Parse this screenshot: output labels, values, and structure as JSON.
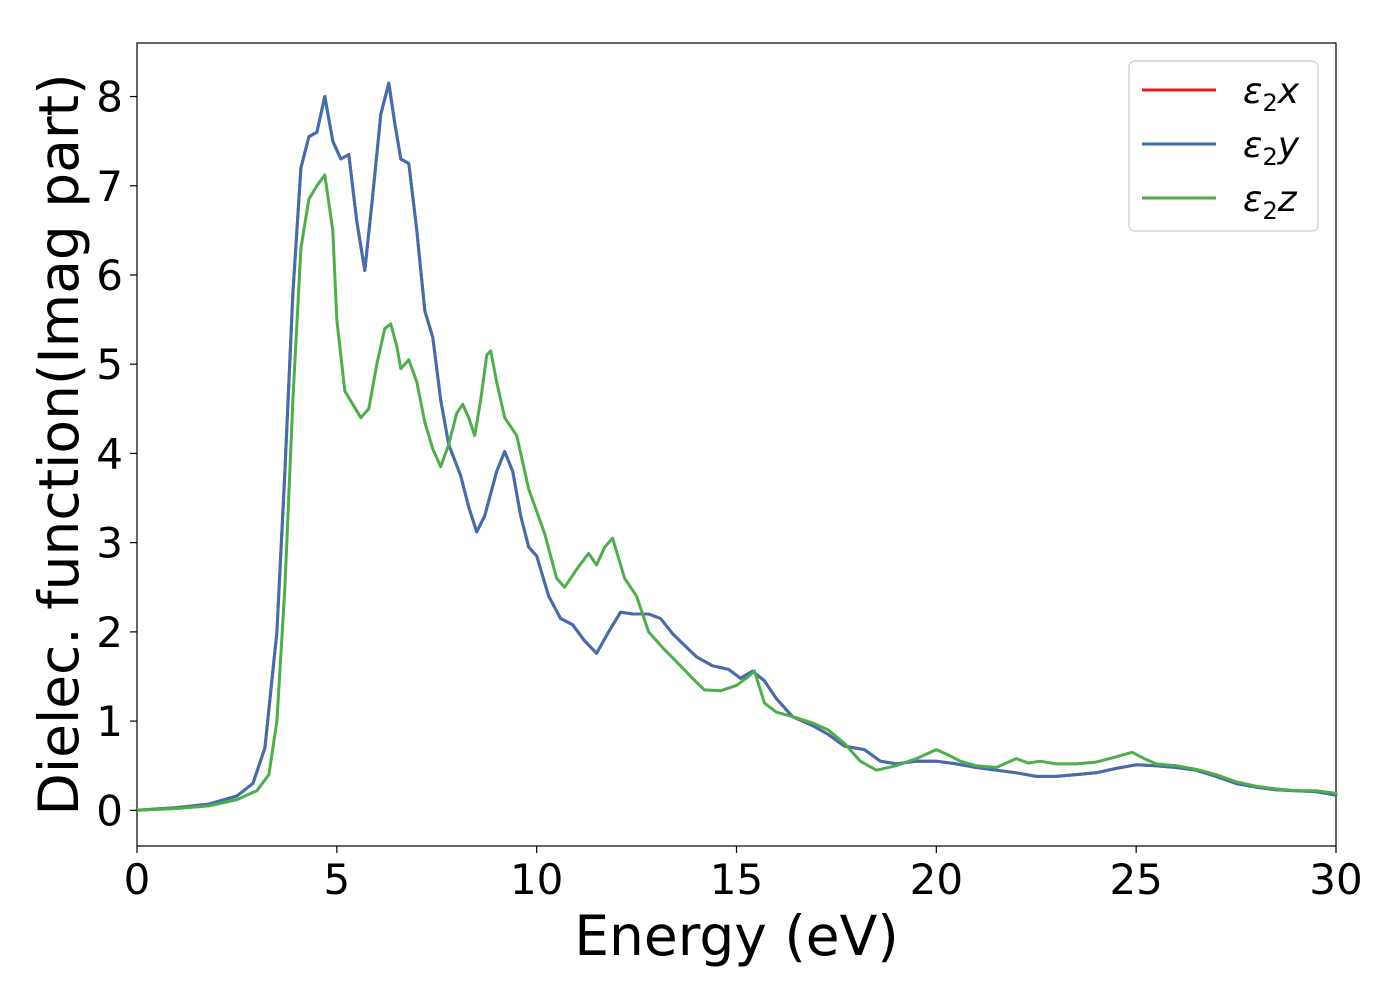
{
  "chart_data": {
    "type": "line",
    "title": "",
    "xlabel": "Energy (eV)",
    "ylabel": "Dielec. function(Imag part)",
    "xlim": [
      0,
      30
    ],
    "ylim": [
      -0.4,
      8.6
    ],
    "xticks": [
      0,
      5,
      10,
      15,
      20,
      25,
      30
    ],
    "yticks": [
      0,
      1,
      2,
      3,
      4,
      5,
      6,
      7,
      8
    ],
    "grid": false,
    "legend_position": "top-right",
    "series": [
      {
        "name": "ε₂x",
        "legend_base": "ε",
        "legend_sub": "2",
        "legend_suffix": "x",
        "color": "#e41a1c",
        "points": [
          [
            0,
            0
          ],
          [
            1,
            0.03
          ],
          [
            1.8,
            0.07
          ],
          [
            2.5,
            0.16
          ],
          [
            2.9,
            0.3
          ],
          [
            3.2,
            0.7
          ],
          [
            3.5,
            2.0
          ],
          [
            3.7,
            3.8
          ],
          [
            3.9,
            5.8
          ],
          [
            4.1,
            7.2
          ],
          [
            4.3,
            7.55
          ],
          [
            4.5,
            7.6
          ],
          [
            4.7,
            8.0
          ],
          [
            4.9,
            7.5
          ],
          [
            5.1,
            7.3
          ],
          [
            5.3,
            7.35
          ],
          [
            5.5,
            6.6
          ],
          [
            5.7,
            6.05
          ],
          [
            5.9,
            6.9
          ],
          [
            6.1,
            7.8
          ],
          [
            6.3,
            8.15
          ],
          [
            6.45,
            7.7
          ],
          [
            6.6,
            7.3
          ],
          [
            6.8,
            7.25
          ],
          [
            7.0,
            6.5
          ],
          [
            7.2,
            5.6
          ],
          [
            7.4,
            5.3
          ],
          [
            7.6,
            4.6
          ],
          [
            7.8,
            4.1
          ],
          [
            8.1,
            3.75
          ],
          [
            8.3,
            3.4
          ],
          [
            8.5,
            3.12
          ],
          [
            8.7,
            3.3
          ],
          [
            9.0,
            3.8
          ],
          [
            9.2,
            4.02
          ],
          [
            9.4,
            3.8
          ],
          [
            9.6,
            3.3
          ],
          [
            9.8,
            2.95
          ],
          [
            10.0,
            2.85
          ],
          [
            10.3,
            2.4
          ],
          [
            10.6,
            2.15
          ],
          [
            10.9,
            2.08
          ],
          [
            11.2,
            1.9
          ],
          [
            11.5,
            1.76
          ],
          [
            11.8,
            2.0
          ],
          [
            12.1,
            2.22
          ],
          [
            12.4,
            2.2
          ],
          [
            12.8,
            2.2
          ],
          [
            13.1,
            2.15
          ],
          [
            13.4,
            1.98
          ],
          [
            13.7,
            1.85
          ],
          [
            14.0,
            1.72
          ],
          [
            14.4,
            1.62
          ],
          [
            14.8,
            1.58
          ],
          [
            15.1,
            1.48
          ],
          [
            15.4,
            1.56
          ],
          [
            15.7,
            1.45
          ],
          [
            16.0,
            1.25
          ],
          [
            16.4,
            1.05
          ],
          [
            16.9,
            0.95
          ],
          [
            17.3,
            0.85
          ],
          [
            17.7,
            0.72
          ],
          [
            18.2,
            0.68
          ],
          [
            18.6,
            0.55
          ],
          [
            19.0,
            0.52
          ],
          [
            19.5,
            0.55
          ],
          [
            20.0,
            0.55
          ],
          [
            20.5,
            0.52
          ],
          [
            21.0,
            0.48
          ],
          [
            21.5,
            0.45
          ],
          [
            22.0,
            0.42
          ],
          [
            22.5,
            0.38
          ],
          [
            23.0,
            0.38
          ],
          [
            23.5,
            0.4
          ],
          [
            24.0,
            0.42
          ],
          [
            24.5,
            0.47
          ],
          [
            25.0,
            0.51
          ],
          [
            25.5,
            0.5
          ],
          [
            26.0,
            0.48
          ],
          [
            26.5,
            0.45
          ],
          [
            27.0,
            0.38
          ],
          [
            27.5,
            0.3
          ],
          [
            28.0,
            0.26
          ],
          [
            28.5,
            0.23
          ],
          [
            29.0,
            0.22
          ],
          [
            29.5,
            0.21
          ],
          [
            30.0,
            0.17
          ]
        ]
      },
      {
        "name": "ε₂y",
        "legend_base": "ε",
        "legend_sub": "2",
        "legend_suffix": "y",
        "color": "#3f6fb0",
        "points": [
          [
            0,
            0
          ],
          [
            1,
            0.03
          ],
          [
            1.8,
            0.07
          ],
          [
            2.5,
            0.16
          ],
          [
            2.9,
            0.3
          ],
          [
            3.2,
            0.7
          ],
          [
            3.5,
            2.0
          ],
          [
            3.7,
            3.8
          ],
          [
            3.9,
            5.8
          ],
          [
            4.1,
            7.2
          ],
          [
            4.3,
            7.55
          ],
          [
            4.5,
            7.6
          ],
          [
            4.7,
            8.0
          ],
          [
            4.9,
            7.5
          ],
          [
            5.1,
            7.3
          ],
          [
            5.3,
            7.35
          ],
          [
            5.5,
            6.6
          ],
          [
            5.7,
            6.05
          ],
          [
            5.9,
            6.9
          ],
          [
            6.1,
            7.8
          ],
          [
            6.3,
            8.15
          ],
          [
            6.45,
            7.7
          ],
          [
            6.6,
            7.3
          ],
          [
            6.8,
            7.25
          ],
          [
            7.0,
            6.5
          ],
          [
            7.2,
            5.6
          ],
          [
            7.4,
            5.3
          ],
          [
            7.6,
            4.6
          ],
          [
            7.8,
            4.1
          ],
          [
            8.1,
            3.75
          ],
          [
            8.3,
            3.4
          ],
          [
            8.5,
            3.12
          ],
          [
            8.7,
            3.3
          ],
          [
            9.0,
            3.8
          ],
          [
            9.2,
            4.02
          ],
          [
            9.4,
            3.8
          ],
          [
            9.6,
            3.3
          ],
          [
            9.8,
            2.95
          ],
          [
            10.0,
            2.85
          ],
          [
            10.3,
            2.4
          ],
          [
            10.6,
            2.15
          ],
          [
            10.9,
            2.08
          ],
          [
            11.2,
            1.9
          ],
          [
            11.5,
            1.76
          ],
          [
            11.8,
            2.0
          ],
          [
            12.1,
            2.22
          ],
          [
            12.4,
            2.2
          ],
          [
            12.8,
            2.2
          ],
          [
            13.1,
            2.15
          ],
          [
            13.4,
            1.98
          ],
          [
            13.7,
            1.85
          ],
          [
            14.0,
            1.72
          ],
          [
            14.4,
            1.62
          ],
          [
            14.8,
            1.58
          ],
          [
            15.1,
            1.48
          ],
          [
            15.4,
            1.56
          ],
          [
            15.7,
            1.45
          ],
          [
            16.0,
            1.25
          ],
          [
            16.4,
            1.05
          ],
          [
            16.9,
            0.95
          ],
          [
            17.3,
            0.85
          ],
          [
            17.7,
            0.72
          ],
          [
            18.2,
            0.68
          ],
          [
            18.6,
            0.55
          ],
          [
            19.0,
            0.52
          ],
          [
            19.5,
            0.55
          ],
          [
            20.0,
            0.55
          ],
          [
            20.5,
            0.52
          ],
          [
            21.0,
            0.48
          ],
          [
            21.5,
            0.45
          ],
          [
            22.0,
            0.42
          ],
          [
            22.5,
            0.38
          ],
          [
            23.0,
            0.38
          ],
          [
            23.5,
            0.4
          ],
          [
            24.0,
            0.42
          ],
          [
            24.5,
            0.47
          ],
          [
            25.0,
            0.51
          ],
          [
            25.5,
            0.5
          ],
          [
            26.0,
            0.48
          ],
          [
            26.5,
            0.45
          ],
          [
            27.0,
            0.38
          ],
          [
            27.5,
            0.3
          ],
          [
            28.0,
            0.26
          ],
          [
            28.5,
            0.23
          ],
          [
            29.0,
            0.22
          ],
          [
            29.5,
            0.21
          ],
          [
            30.0,
            0.17
          ]
        ]
      },
      {
        "name": "ε₂z",
        "legend_base": "ε",
        "legend_sub": "2",
        "legend_suffix": "z",
        "color": "#4daf4a",
        "points": [
          [
            0,
            0
          ],
          [
            1,
            0.02
          ],
          [
            1.8,
            0.05
          ],
          [
            2.5,
            0.12
          ],
          [
            3.0,
            0.22
          ],
          [
            3.3,
            0.4
          ],
          [
            3.5,
            1.0
          ],
          [
            3.7,
            2.5
          ],
          [
            3.9,
            4.6
          ],
          [
            4.1,
            6.3
          ],
          [
            4.3,
            6.85
          ],
          [
            4.5,
            7.0
          ],
          [
            4.7,
            7.12
          ],
          [
            4.9,
            6.5
          ],
          [
            5.0,
            5.5
          ],
          [
            5.2,
            4.7
          ],
          [
            5.4,
            4.55
          ],
          [
            5.6,
            4.4
          ],
          [
            5.8,
            4.5
          ],
          [
            6.0,
            5.0
          ],
          [
            6.2,
            5.4
          ],
          [
            6.35,
            5.45
          ],
          [
            6.5,
            5.2
          ],
          [
            6.6,
            4.95
          ],
          [
            6.8,
            5.05
          ],
          [
            7.0,
            4.8
          ],
          [
            7.2,
            4.35
          ],
          [
            7.4,
            4.05
          ],
          [
            7.6,
            3.85
          ],
          [
            7.8,
            4.1
          ],
          [
            8.0,
            4.45
          ],
          [
            8.15,
            4.55
          ],
          [
            8.3,
            4.4
          ],
          [
            8.45,
            4.2
          ],
          [
            8.6,
            4.6
          ],
          [
            8.75,
            5.1
          ],
          [
            8.85,
            5.15
          ],
          [
            9.0,
            4.8
          ],
          [
            9.2,
            4.4
          ],
          [
            9.5,
            4.2
          ],
          [
            9.8,
            3.6
          ],
          [
            10.2,
            3.1
          ],
          [
            10.5,
            2.6
          ],
          [
            10.7,
            2.5
          ],
          [
            11.0,
            2.7
          ],
          [
            11.3,
            2.88
          ],
          [
            11.5,
            2.75
          ],
          [
            11.7,
            2.95
          ],
          [
            11.9,
            3.05
          ],
          [
            12.2,
            2.6
          ],
          [
            12.5,
            2.4
          ],
          [
            12.8,
            2.0
          ],
          [
            13.2,
            1.8
          ],
          [
            13.6,
            1.62
          ],
          [
            13.9,
            1.48
          ],
          [
            14.2,
            1.35
          ],
          [
            14.6,
            1.34
          ],
          [
            15.0,
            1.4
          ],
          [
            15.3,
            1.5
          ],
          [
            15.45,
            1.56
          ],
          [
            15.7,
            1.2
          ],
          [
            16.0,
            1.1
          ],
          [
            16.4,
            1.05
          ],
          [
            16.9,
            0.98
          ],
          [
            17.3,
            0.9
          ],
          [
            17.7,
            0.75
          ],
          [
            18.1,
            0.55
          ],
          [
            18.5,
            0.45
          ],
          [
            19.0,
            0.5
          ],
          [
            19.5,
            0.58
          ],
          [
            20.0,
            0.68
          ],
          [
            20.3,
            0.62
          ],
          [
            20.6,
            0.55
          ],
          [
            21.0,
            0.5
          ],
          [
            21.5,
            0.48
          ],
          [
            22.0,
            0.58
          ],
          [
            22.3,
            0.53
          ],
          [
            22.6,
            0.55
          ],
          [
            23.0,
            0.52
          ],
          [
            23.5,
            0.52
          ],
          [
            24.0,
            0.54
          ],
          [
            24.5,
            0.6
          ],
          [
            24.9,
            0.65
          ],
          [
            25.2,
            0.58
          ],
          [
            25.5,
            0.52
          ],
          [
            26.0,
            0.5
          ],
          [
            26.5,
            0.46
          ],
          [
            27.0,
            0.4
          ],
          [
            27.5,
            0.32
          ],
          [
            28.0,
            0.27
          ],
          [
            28.5,
            0.24
          ],
          [
            29.0,
            0.22
          ],
          [
            29.5,
            0.22
          ],
          [
            30.0,
            0.19
          ]
        ]
      }
    ]
  }
}
